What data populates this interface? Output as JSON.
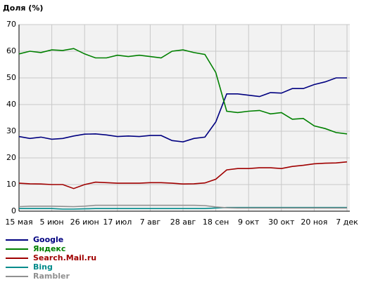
{
  "chart_data": {
    "type": "line",
    "y_label": "Доля (%)",
    "categories": [
      "15 мая",
      null,
      null,
      "5 июн",
      null,
      null,
      "26 июн",
      null,
      null,
      "17 июл",
      null,
      null,
      "7 авг",
      null,
      null,
      "28 авг",
      null,
      null,
      "18 сен",
      null,
      null,
      "9 окт",
      null,
      null,
      "30 окт",
      null,
      null,
      "20 ноя",
      null,
      null,
      "7 дек"
    ],
    "series": [
      {
        "name": "Google",
        "color": "#000080",
        "values": [
          28,
          27.3,
          27.8,
          27,
          27.3,
          28.2,
          28.9,
          29,
          28.6,
          28,
          28.2,
          28,
          28.4,
          28.4,
          26.5,
          26,
          27.3,
          27.8,
          33.5,
          44,
          44,
          43.5,
          43,
          44.5,
          44.3,
          46,
          46,
          47.5,
          48.5,
          50,
          50
        ]
      },
      {
        "name": "Яндекс",
        "color": "#008000",
        "values": [
          59,
          60,
          59.5,
          60.5,
          60.3,
          61,
          59,
          57.5,
          57.5,
          58.5,
          58,
          58.5,
          58,
          57.5,
          60,
          60.5,
          59.5,
          58.8,
          52,
          37.5,
          37,
          37.5,
          37.8,
          36.5,
          37,
          34.5,
          34.8,
          32,
          31,
          29.5,
          29
        ]
      },
      {
        "name": "Search.Mail.ru",
        "color": "#a00000",
        "values": [
          10.5,
          10.3,
          10.2,
          10,
          10,
          8.5,
          10,
          10.9,
          10.7,
          10.5,
          10.5,
          10.5,
          10.7,
          10.7,
          10.5,
          10.2,
          10.3,
          10.6,
          12,
          15.5,
          16,
          16,
          16.3,
          16.3,
          16,
          16.8,
          17.2,
          17.8,
          18,
          18.1,
          18.5
        ]
      },
      {
        "name": "Bing",
        "color": "#008b8b",
        "values": [
          1,
          1,
          1,
          1,
          0.8,
          0.8,
          0.9,
          1,
          1,
          1,
          1,
          1,
          1,
          1,
          1,
          1,
          1,
          1,
          1.2,
          1.4,
          1.4,
          1.4,
          1.4,
          1.4,
          1.4,
          1.4,
          1.4,
          1.4,
          1.4,
          1.4,
          1.4
        ]
      },
      {
        "name": "Rambler",
        "color": "#909090",
        "values": [
          1.7,
          1.9,
          1.9,
          1.9,
          1.8,
          1.7,
          1.9,
          2.2,
          2.2,
          2.2,
          2.2,
          2.2,
          2.2,
          2.2,
          2.2,
          2.2,
          2.2,
          2.1,
          1.6,
          1.3,
          1.2,
          1.2,
          1.2,
          1.2,
          1.2,
          1.2,
          1.2,
          1.2,
          1.2,
          1.2,
          1.2
        ]
      }
    ],
    "ylim": [
      0,
      70
    ],
    "yticks": [
      0,
      10,
      20,
      30,
      40,
      50,
      60,
      70
    ],
    "grid": true
  }
}
